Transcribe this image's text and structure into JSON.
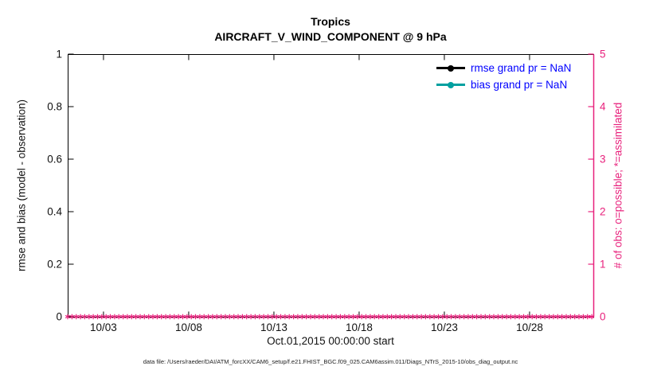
{
  "title": {
    "line1": "Tropics",
    "line2": "AIRCRAFT_V_WIND_COMPONENT @ 9 hPa"
  },
  "chart_data": {
    "type": "line",
    "title": "Tropics",
    "subtitle": "AIRCRAFT_V_WIND_COMPONENT @ 9 hPa",
    "xlabel": "Oct.01,2015 00:00:00 start",
    "ylabel_left": "rmse and bias (model - observation)",
    "ylabel_right": "# of obs: o=possible; *=assimilated",
    "x_ticks": [
      "10/03",
      "10/08",
      "10/13",
      "10/18",
      "10/23",
      "10/28"
    ],
    "x_tick_days": [
      3,
      8,
      13,
      18,
      23,
      28
    ],
    "x_range_days": [
      0.9,
      31.74
    ],
    "ylim_left": [
      0,
      1
    ],
    "yticks_left": [
      0,
      0.2,
      0.4,
      0.6,
      0.8,
      1
    ],
    "ylim_right": [
      0,
      5
    ],
    "yticks_right": [
      0,
      1,
      2,
      3,
      4,
      5
    ],
    "grid": false,
    "legend_position": "top-right",
    "series": [
      {
        "name": "rmse grand pr = NaN",
        "color": "#000000",
        "values": []
      },
      {
        "name": "bias grand pr = NaN",
        "color": "#00a0a0",
        "values": []
      }
    ],
    "obs_markers": {
      "symbol": "*",
      "meaning": "# of obs assimilated per time, all zero/NaN data",
      "color": "#e8217c",
      "y_value": 0,
      "day_start": 0.9,
      "day_end": 31.7,
      "day_step": 0.25
    }
  },
  "colors": {
    "axis_left": "#000000",
    "axis_right": "#e8217c",
    "legend_text": "#0000ff",
    "rmse": "#000000",
    "bias": "#00a0a0"
  },
  "footer": {
    "text": "data file: /Users/raeder/DAI/ATM_forcXX/CAM6_setup/f.e21.FHIST_BGC.f09_025.CAM6assim.011/Diags_NTrS_2015-10/obs_diag_output.nc"
  }
}
